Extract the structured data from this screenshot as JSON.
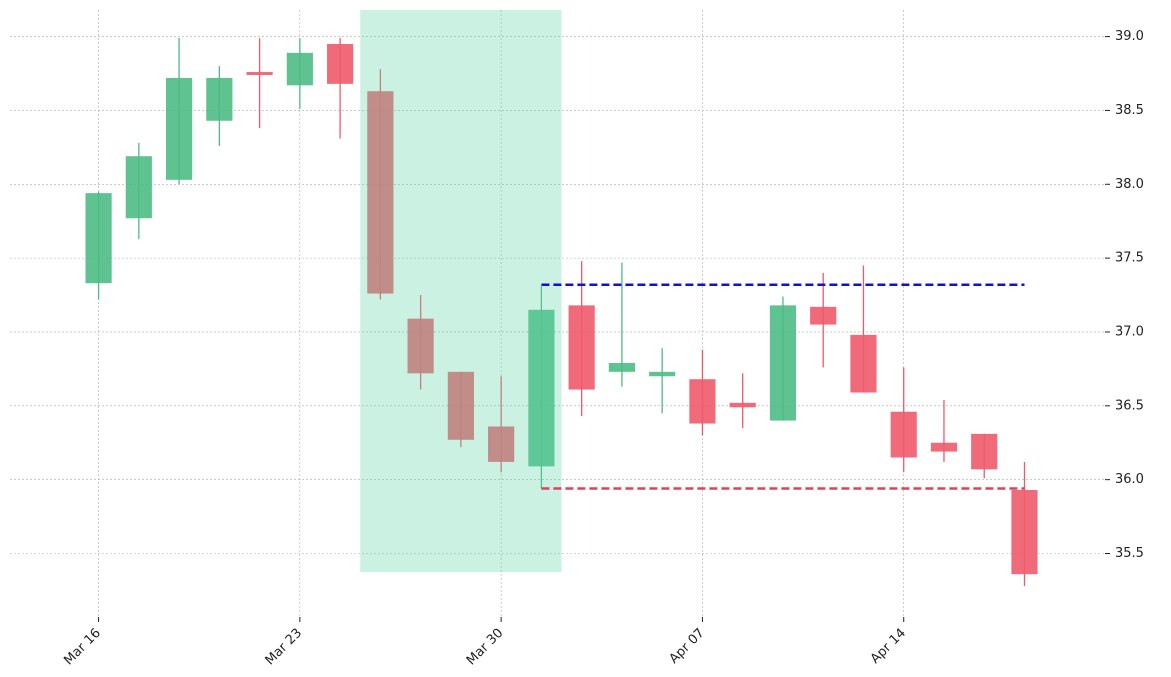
{
  "chart_data": {
    "type": "candlestick",
    "x": [
      0,
      1,
      2,
      3,
      4,
      5,
      6,
      7,
      8,
      9,
      10,
      11,
      12,
      13,
      14,
      15,
      16,
      17,
      18,
      19,
      20,
      21,
      22,
      23
    ],
    "open": [
      37.33,
      37.77,
      38.03,
      38.43,
      38.76,
      38.67,
      38.95,
      38.63,
      37.09,
      36.73,
      36.36,
      36.09,
      37.18,
      36.73,
      36.7,
      36.68,
      36.52,
      36.4,
      37.17,
      36.98,
      36.46,
      36.25,
      36.31,
      35.93
    ],
    "high": [
      37.95,
      38.28,
      38.99,
      38.8,
      38.99,
      38.99,
      38.99,
      38.78,
      37.25,
      36.73,
      36.7,
      37.31,
      37.48,
      37.47,
      36.89,
      36.88,
      36.72,
      37.24,
      37.4,
      37.45,
      36.76,
      36.54,
      36.31,
      36.12
    ],
    "low": [
      37.22,
      37.63,
      38.0,
      38.26,
      38.38,
      38.51,
      38.31,
      37.22,
      36.61,
      36.22,
      36.05,
      35.94,
      36.43,
      36.63,
      36.45,
      36.3,
      36.35,
      36.4,
      36.76,
      36.59,
      36.05,
      36.12,
      36.01,
      35.28
    ],
    "close": [
      37.94,
      38.19,
      38.72,
      38.72,
      38.74,
      38.89,
      38.68,
      37.26,
      36.72,
      36.27,
      36.12,
      37.15,
      36.61,
      36.79,
      36.73,
      36.38,
      36.49,
      37.18,
      37.05,
      36.59,
      36.15,
      36.19,
      36.07,
      35.36
    ],
    "up_color": "#4dbb85",
    "down_color": "#ef5a6a",
    "highlight_range": [
      7,
      11
    ],
    "highlight_color": "#5dd3a6",
    "levels": [
      {
        "value": 37.32,
        "color": "#1010dd",
        "x": [
          11,
          23
        ]
      },
      {
        "value": 35.94,
        "color": "#e0405a",
        "x": [
          11,
          23
        ]
      }
    ],
    "xlim": [
      -2.2,
      25
    ],
    "xticks": [
      {
        "value": 0,
        "label": "Mar 16"
      },
      {
        "value": 5,
        "label": "Mar 23"
      },
      {
        "value": 10,
        "label": "Mar 30"
      },
      {
        "value": 15,
        "label": "Apr 07"
      },
      {
        "value": 20,
        "label": "Apr 14"
      }
    ],
    "ylim": [
      35.07,
      39.18
    ],
    "yticks": [
      35.5,
      {
        "value": 36,
        "label": "36.0"
      },
      36.5,
      {
        "value": 37,
        "label": "37.0"
      },
      37.5,
      {
        "value": 38,
        "label": "38.0"
      },
      38.5,
      {
        "value": 39,
        "label": "39.0"
      }
    ],
    "grid": true
  }
}
